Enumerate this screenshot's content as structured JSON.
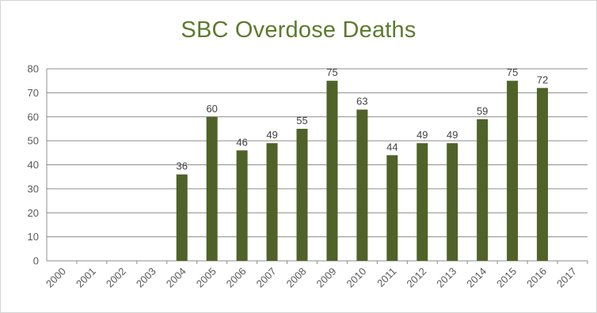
{
  "chart_data": {
    "type": "bar",
    "title": "SBC Overdose Deaths",
    "xlabel": "",
    "ylabel": "",
    "categories": [
      "2000",
      "2001",
      "2002",
      "2003",
      "2004",
      "2005",
      "2006",
      "2007",
      "2008",
      "2009",
      "2010",
      "2011",
      "2012",
      "2013",
      "2014",
      "2015",
      "2016",
      "2017"
    ],
    "values": [
      null,
      null,
      null,
      null,
      36,
      60,
      46,
      49,
      55,
      75,
      63,
      44,
      49,
      49,
      59,
      75,
      72,
      null
    ],
    "ylim": [
      0,
      80
    ],
    "yticks": [
      0,
      10,
      20,
      30,
      40,
      50,
      60,
      70,
      80
    ],
    "grid": true,
    "legend": "none",
    "bar_color": "#4f6228"
  }
}
